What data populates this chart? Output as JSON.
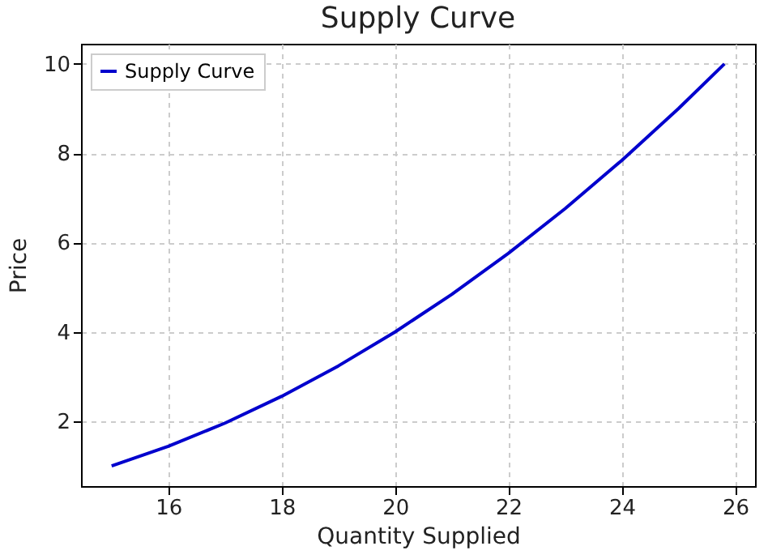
{
  "chart_data": {
    "type": "line",
    "title": "Supply Curve",
    "xlabel": "Quantity Supplied",
    "ylabel": "Price",
    "x": [
      15,
      16,
      17,
      18,
      19,
      20,
      21,
      22,
      23,
      24,
      25,
      25.81
    ],
    "series": [
      {
        "name": "Supply Curve",
        "color": "#0000cd",
        "values": [
          1,
          1.44,
          1.96,
          2.56,
          3.24,
          4,
          4.84,
          5.76,
          6.76,
          7.84,
          9,
          10
        ]
      }
    ],
    "xlim": [
      14.46,
      26.35
    ],
    "ylim": [
      0.55,
      10.45
    ],
    "xticks": [
      16,
      18,
      20,
      22,
      24,
      26
    ],
    "yticks": [
      2,
      4,
      6,
      8,
      10
    ],
    "grid": true,
    "legend": "top left",
    "marker": "none",
    "line_style": "solid"
  }
}
